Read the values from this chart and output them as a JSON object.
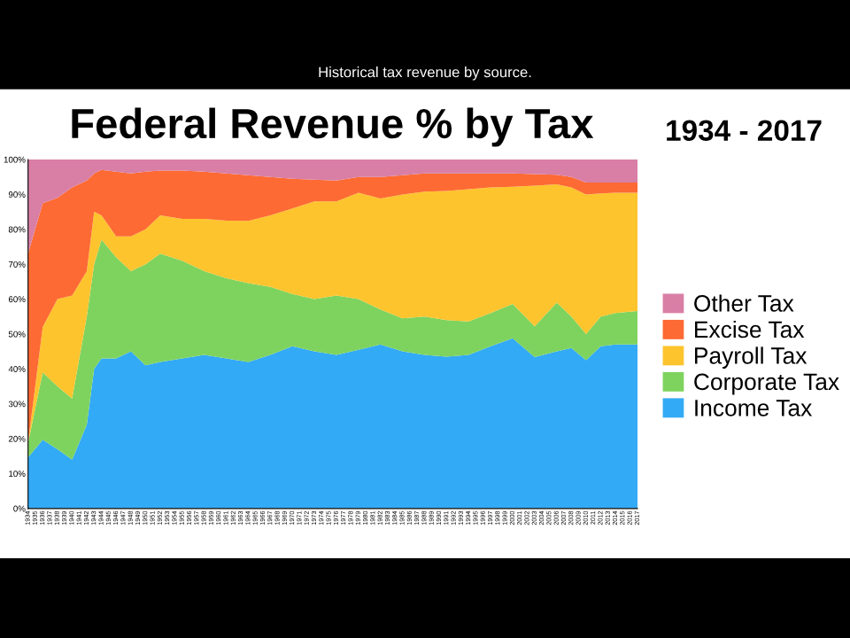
{
  "chart_data": {
    "type": "area",
    "stacked": true,
    "title": "Federal Revenue % by Tax",
    "subtitle": "1934 - 2017",
    "annotations": [
      "Historical tax revenue by source."
    ],
    "x": [
      1934,
      1936,
      1938,
      1940,
      1942,
      1943,
      1944,
      1946,
      1948,
      1950,
      1952,
      1955,
      1958,
      1961,
      1964,
      1967,
      1970,
      1973,
      1976,
      1979,
      1982,
      1985,
      1988,
      1991,
      1994,
      1997,
      2000,
      2003,
      2006,
      2008,
      2010,
      2012,
      2014,
      2017
    ],
    "series": [
      {
        "name": "Income Tax",
        "color": "#33aaf5",
        "values": [
          14.6,
          19.7,
          17,
          14,
          24,
          40,
          43,
          43,
          45,
          41,
          42,
          43,
          44,
          43,
          42,
          44,
          46.5,
          45,
          44,
          45.5,
          47,
          45,
          44,
          43.5,
          44,
          46.5,
          48.8,
          43.4,
          45,
          46,
          42.5,
          46.5,
          47,
          47
        ]
      },
      {
        "name": "Corporate Tax",
        "color": "#7ed35e",
        "values": [
          4.2,
          19.3,
          18,
          17.5,
          31,
          30,
          34,
          29,
          23,
          29,
          31,
          28,
          24,
          23,
          22.6,
          19.5,
          15,
          15,
          17,
          14.5,
          10,
          9.5,
          11,
          10.5,
          9.6,
          9.5,
          9.8,
          8.8,
          14,
          9,
          7.5,
          8.5,
          9,
          9.6
        ]
      },
      {
        "name": "Payroll Tax",
        "color": "#fdc42e",
        "values": [
          0,
          13,
          25,
          29.5,
          13,
          15,
          7,
          6,
          10,
          10,
          11,
          12,
          15,
          16.5,
          17.8,
          20.5,
          24.5,
          28,
          27,
          30.5,
          31.8,
          35.5,
          35.8,
          37,
          37.9,
          36,
          33.6,
          40.3,
          33.9,
          37,
          40,
          35.3,
          34.5,
          33.9
        ]
      },
      {
        "name": "Excise Tax",
        "color": "#fd6a33",
        "values": [
          54.2,
          35.5,
          29,
          31,
          26,
          11,
          13,
          18.5,
          18,
          16.5,
          12.8,
          13.8,
          13.5,
          13.5,
          13.1,
          11,
          8.5,
          6.2,
          6,
          4.5,
          6.2,
          5.5,
          5.2,
          5,
          4.5,
          4,
          3.8,
          3.3,
          2.7,
          3,
          3.4,
          3.1,
          2.9,
          2.9
        ]
      },
      {
        "name": "Other Tax",
        "color": "#d97fa6",
        "values": [
          27,
          12.5,
          11,
          8,
          6,
          4,
          3,
          3.5,
          4,
          3.5,
          3.2,
          3.2,
          3.5,
          4,
          4.5,
          5,
          5.5,
          5.8,
          6,
          5,
          5,
          4.5,
          4,
          4,
          4,
          4,
          4,
          4.2,
          4.4,
          5,
          6.6,
          6.6,
          6.6,
          6.6
        ]
      }
    ],
    "xlim": [
      1934,
      2017
    ],
    "xticks": [
      1934,
      1935,
      1936,
      1937,
      1938,
      1939,
      1940,
      1941,
      1942,
      1943,
      1944,
      1945,
      1946,
      1947,
      1948,
      1949,
      1950,
      1951,
      1952,
      1953,
      1954,
      1955,
      1956,
      1957,
      1958,
      1959,
      1960,
      1961,
      1962,
      1963,
      1964,
      1965,
      1966,
      1967,
      1968,
      1969,
      1970,
      1971,
      1972,
      1973,
      1974,
      1975,
      1976,
      1977,
      1978,
      1979,
      1980,
      1981,
      1982,
      1983,
      1984,
      1985,
      1986,
      1987,
      1988,
      1989,
      1990,
      1991,
      1992,
      1993,
      1994,
      1995,
      1996,
      1997,
      1998,
      1999,
      2000,
      2001,
      2002,
      2003,
      2004,
      2005,
      2006,
      2007,
      2008,
      2009,
      2010,
      2011,
      2012,
      2013,
      2014,
      2015,
      2016,
      2017
    ],
    "ylim": [
      0,
      100
    ],
    "yticks": [
      {
        "value": 0,
        "label": "0%"
      },
      {
        "value": 10,
        "label": "10%"
      },
      {
        "value": 20,
        "label": "20%"
      },
      {
        "value": 30,
        "label": "30%"
      },
      {
        "value": 40,
        "label": "40%"
      },
      {
        "value": 50,
        "label": "50%"
      },
      {
        "value": 60,
        "label": "60%"
      },
      {
        "value": 70,
        "label": "70%"
      },
      {
        "value": 80,
        "label": "80%"
      },
      {
        "value": 90,
        "label": "90%"
      },
      {
        "value": 100,
        "label": "100%"
      }
    ],
    "grid": false,
    "legend": "right"
  }
}
